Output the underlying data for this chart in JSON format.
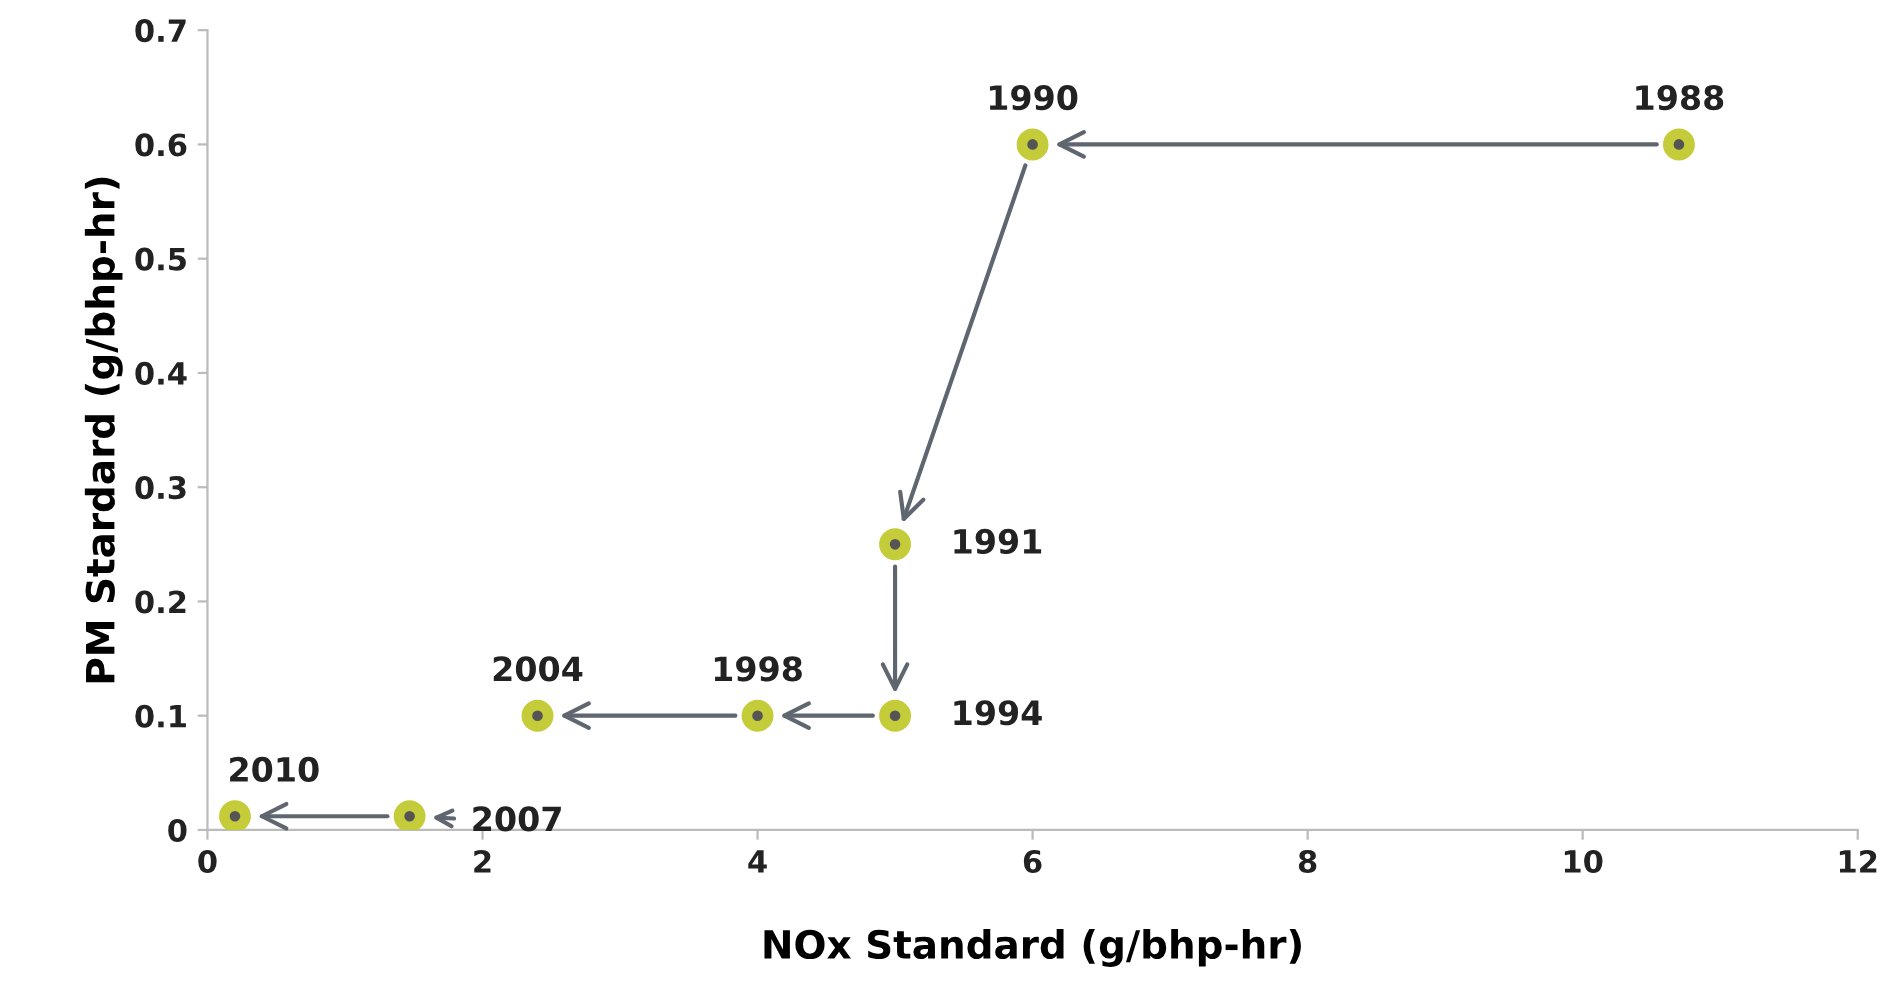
{
  "chart_data": {
    "type": "scatter",
    "xlabel": "NOx Standard (g/bhp-hr)",
    "ylabel": "PM Stardard (g/bhp-hr)",
    "x": [
      10.7,
      6,
      5,
      5,
      4,
      2.4,
      1.47,
      0.2
    ],
    "values": [
      0.6,
      0.6,
      0.25,
      0.1,
      0.1,
      0.1,
      0.012,
      0.012
    ],
    "color": "#c5cc3a",
    "marker": "circle",
    "xlim": [
      0,
      12
    ],
    "xticks": [
      0,
      2,
      4,
      6,
      8,
      10,
      12
    ],
    "ylim": [
      0,
      0.7
    ],
    "yticks": [
      0,
      0.1,
      0.2,
      0.3,
      0.4,
      0.5,
      0.6,
      0.7
    ],
    "grid": false,
    "legend": false,
    "annotations": [
      {
        "text": "1988",
        "x": 10.7,
        "y": 0.6
      },
      {
        "text": "1990",
        "x": 6,
        "y": 0.6
      },
      {
        "text": "1991",
        "x": 5,
        "y": 0.25
      },
      {
        "text": "1994",
        "x": 5,
        "y": 0.1
      },
      {
        "text": "1998",
        "x": 4,
        "y": 0.1
      },
      {
        "text": "2004",
        "x": 2.4,
        "y": 0.1
      },
      {
        "text": "2007",
        "x": 1.47,
        "y": 0.012
      },
      {
        "text": "2010",
        "x": 0.2,
        "y": 0.012
      }
    ]
  }
}
